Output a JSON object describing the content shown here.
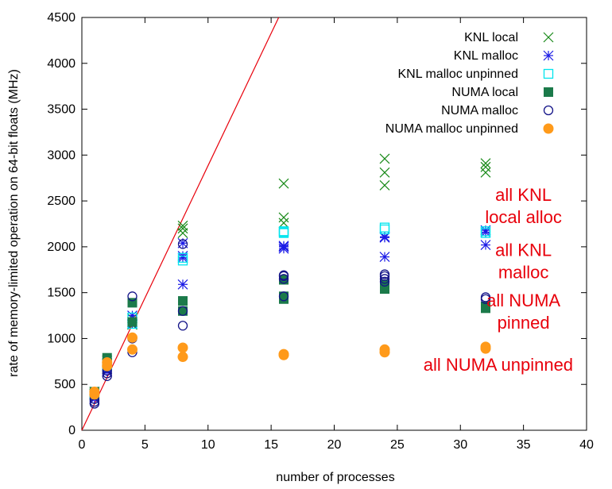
{
  "chart_data": {
    "type": "scatter",
    "xlabel": "number of processes",
    "ylabel": "rate of memory-limited operation on 64-bit floats (MHz)",
    "xlim": [
      0,
      40
    ],
    "ylim": [
      0,
      4500
    ],
    "xticks": [
      0,
      5,
      10,
      15,
      20,
      25,
      30,
      35,
      40
    ],
    "yticks": [
      0,
      500,
      1000,
      1500,
      2000,
      2500,
      3000,
      3500,
      4000,
      4500
    ],
    "grid": false,
    "legend_position": "top-right",
    "reference_line": {
      "x": [
        0,
        15.6
      ],
      "y": [
        0,
        4500
      ],
      "color": "#e8000b"
    },
    "series": [
      {
        "name": "KNL local",
        "marker": "x",
        "color": "#1a8a1a",
        "x": [
          1,
          1,
          1,
          2,
          2,
          4,
          4,
          4,
          8,
          8,
          8,
          16,
          16,
          16,
          24,
          24,
          24,
          32,
          32,
          32
        ],
        "y": [
          380,
          400,
          420,
          730,
          760,
          1150,
          1180,
          1220,
          2150,
          2200,
          2230,
          2260,
          2320,
          2690,
          2670,
          2810,
          2960,
          2810,
          2870,
          2910
        ]
      },
      {
        "name": "KNL malloc",
        "marker": "star",
        "color": "#1a1ae6",
        "x": [
          1,
          1,
          2,
          2,
          4,
          4,
          8,
          8,
          8,
          8,
          16,
          16,
          16,
          24,
          24,
          24,
          32,
          32,
          32
        ],
        "y": [
          340,
          370,
          640,
          670,
          1160,
          1250,
          1590,
          1880,
          1900,
          2040,
          1980,
          2000,
          2010,
          1890,
          2100,
          2110,
          2020,
          2160,
          2180
        ]
      },
      {
        "name": "KNL malloc unpinned",
        "marker": "open-square",
        "color": "#00e5ee",
        "x": [
          1,
          2,
          4,
          4,
          8,
          8,
          16,
          16,
          16,
          24,
          24,
          32,
          32
        ],
        "y": [
          390,
          700,
          1160,
          1230,
          1850,
          1880,
          2150,
          2160,
          2170,
          2190,
          2210,
          2150,
          2170
        ]
      },
      {
        "name": "NUMA local",
        "marker": "filled-square",
        "color": "#1b7a4a",
        "x": [
          1,
          1,
          2,
          2,
          4,
          4,
          8,
          8,
          16,
          16,
          16,
          24,
          24,
          32,
          32
        ],
        "y": [
          400,
          420,
          730,
          790,
          1180,
          1390,
          1300,
          1410,
          1430,
          1460,
          1640,
          1540,
          1590,
          1330,
          1350
        ]
      },
      {
        "name": "NUMA malloc",
        "marker": "open-circle",
        "color": "#141488",
        "x": [
          1,
          1,
          1,
          2,
          2,
          2,
          4,
          4,
          4,
          8,
          8,
          8,
          16,
          16,
          16,
          16,
          24,
          24,
          24,
          24,
          32,
          32
        ],
        "y": [
          290,
          310,
          340,
          590,
          620,
          650,
          850,
          1000,
          1460,
          1140,
          1300,
          2030,
          1460,
          1650,
          1680,
          1690,
          1620,
          1650,
          1680,
          1700,
          1430,
          1450
        ]
      },
      {
        "name": "NUMA malloc unpinned",
        "marker": "filled-circle",
        "color": "#ff9a1a",
        "x": [
          1,
          1,
          2,
          2,
          4,
          4,
          8,
          8,
          16,
          16,
          24,
          24,
          32,
          32
        ],
        "y": [
          390,
          420,
          700,
          740,
          880,
          1010,
          800,
          900,
          820,
          830,
          850,
          880,
          890,
          910
        ]
      }
    ],
    "annotations": [
      {
        "lines": [
          "all KNL",
          "local alloc"
        ],
        "x": 35,
        "y": 2500
      },
      {
        "lines": [
          "all KNL",
          "malloc"
        ],
        "x": 35,
        "y": 1900
      },
      {
        "lines": [
          "all NUMA",
          "pinned"
        ],
        "x": 35,
        "y": 1350
      },
      {
        "lines": [
          "all NUMA unpinned"
        ],
        "x": 33,
        "y": 650
      }
    ]
  }
}
